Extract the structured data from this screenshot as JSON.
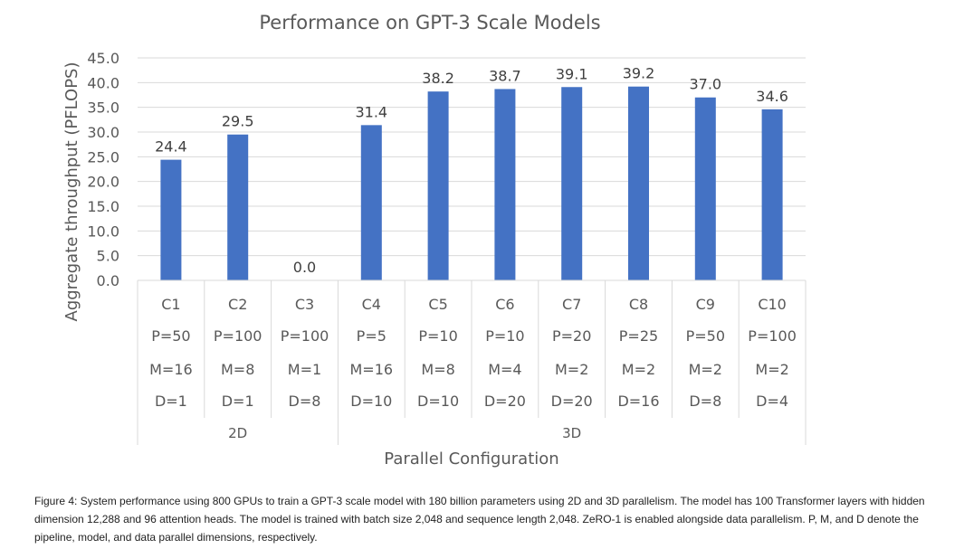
{
  "chart_data": {
    "type": "bar",
    "title": "Performance on GPT-3 Scale Models",
    "ylabel": "Aggregate throughput (PFLOPS)",
    "xlabel": "Parallel Configuration",
    "ylim": [
      0,
      45
    ],
    "yticks": [
      "0.0",
      "5.0",
      "10.0",
      "15.0",
      "20.0",
      "25.0",
      "30.0",
      "35.0",
      "40.0",
      "45.0"
    ],
    "grid": true,
    "categories": [
      {
        "name": "C1",
        "P": "P=50",
        "M": "M=16",
        "D": "D=1"
      },
      {
        "name": "C2",
        "P": "P=100",
        "M": "M=8",
        "D": "D=1"
      },
      {
        "name": "C3",
        "P": "P=100",
        "M": "M=1",
        "D": "D=8"
      },
      {
        "name": "C4",
        "P": "P=5",
        "M": "M=16",
        "D": "D=10"
      },
      {
        "name": "C5",
        "P": "P=10",
        "M": "M=8",
        "D": "D=10"
      },
      {
        "name": "C6",
        "P": "P=10",
        "M": "M=4",
        "D": "D=20"
      },
      {
        "name": "C7",
        "P": "P=20",
        "M": "M=2",
        "D": "D=20"
      },
      {
        "name": "C8",
        "P": "P=25",
        "M": "M=2",
        "D": "D=16"
      },
      {
        "name": "C9",
        "P": "P=50",
        "M": "M=2",
        "D": "D=8"
      },
      {
        "name": "C10",
        "P": "P=100",
        "M": "M=2",
        "D": "D=4"
      }
    ],
    "values": [
      24.4,
      29.5,
      0.0,
      31.4,
      38.2,
      38.7,
      39.1,
      39.2,
      37.0,
      34.6
    ],
    "data_labels": [
      "24.4",
      "29.5",
      "0.0",
      "31.4",
      "38.2",
      "38.7",
      "39.1",
      "39.2",
      "37.0",
      "34.6"
    ],
    "groups": [
      {
        "label": "2D",
        "count": 3
      },
      {
        "label": "3D",
        "count": 7
      }
    ],
    "colors": {
      "bar": "#4472C4",
      "grid": "#D9D9D9",
      "text": "#595959"
    }
  },
  "caption": "Figure 4: System performance using 800 GPUs to train a GPT-3 scale model with 180 billion parameters using 2D and 3D parallelism. The model has 100 Transformer layers with hidden dimension 12,288 and 96 attention heads. The model is trained with batch size 2,048 and sequence length 2,048. ZeRO-1 is enabled alongside data parallelism. P, M, and D denote the pipeline, model, and data parallel dimensions, respectively."
}
